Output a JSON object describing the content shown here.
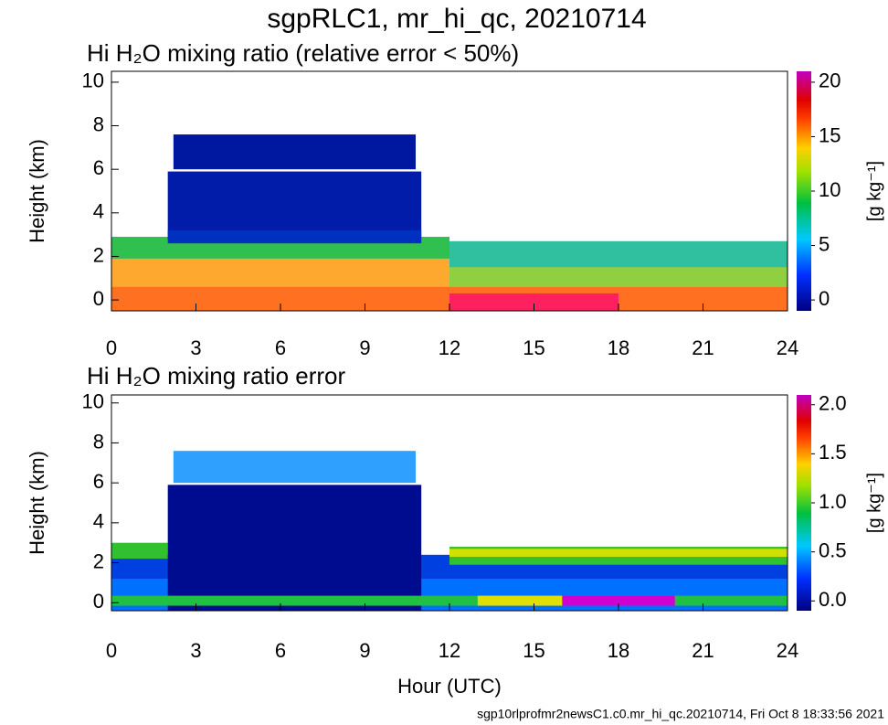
{
  "title": "sgpRLC1, mr_hi_qc, 20210714",
  "footer": "sgp10rlprofmr2newsC1.c0.mr_hi_qc.20210714, Fri Oct  8 18:33:56 2021",
  "chart_data": [
    {
      "type": "heatmap",
      "title": "Hi H₂O mixing ratio (relative error < 50%)",
      "ylabel": "Height (km)",
      "xlim": [
        0,
        24
      ],
      "xticks": [
        0,
        3,
        6,
        9,
        12,
        15,
        18,
        21,
        24
      ],
      "ylim": [
        -0.5,
        10.5
      ],
      "yticks": [
        0,
        2,
        4,
        6,
        8,
        10
      ],
      "colorbar": {
        "label": "[g kg⁻¹]",
        "lim": [
          -1,
          21
        ],
        "ticks": [
          0,
          5,
          10,
          15,
          20
        ]
      }
    },
    {
      "type": "heatmap",
      "title": "Hi H₂O mixing ratio error",
      "ylabel": "Height (km)",
      "xlabel": "Hour (UTC)",
      "xlim": [
        0,
        24
      ],
      "xticks": [
        0,
        3,
        6,
        9,
        12,
        15,
        18,
        21,
        24
      ],
      "ylim": [
        -0.4,
        10.4
      ],
      "yticks": [
        0,
        2,
        4,
        6,
        8,
        10
      ],
      "colorbar": {
        "label": "[g kg⁻¹]",
        "lim": [
          -0.1,
          2.1
        ],
        "ticks": [
          {
            "value": 0,
            "label": "0.0"
          },
          {
            "value": 0.5,
            "label": "0.5"
          },
          {
            "value": 1,
            "label": "1.0"
          },
          {
            "value": 1.5,
            "label": "1.5"
          },
          {
            "value": 2,
            "label": "2.0"
          }
        ]
      }
    }
  ]
}
